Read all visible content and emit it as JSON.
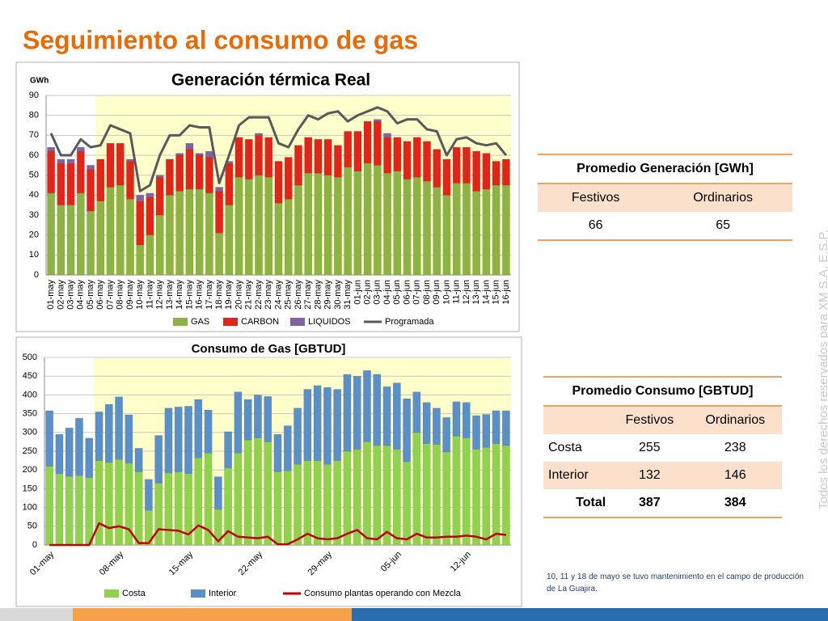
{
  "title": "Seguimiento al consumo de gas",
  "chart_data": [
    {
      "type": "bar",
      "stacked": true,
      "title": "Generación térmica Real",
      "ylabel": "GWh",
      "categories": [
        "01-may",
        "02-may",
        "03-may",
        "04-may",
        "05-may",
        "06-may",
        "07-may",
        "08-may",
        "09-may",
        "10-may",
        "11-may",
        "12-may",
        "13-may",
        "14-may",
        "15-may",
        "16-may",
        "17-may",
        "18-may",
        "19-may",
        "20-may",
        "21-may",
        "22-may",
        "23-may",
        "24-may",
        "25-may",
        "26-may",
        "27-may",
        "28-may",
        "29-may",
        "30-may",
        "31-may",
        "01-jun",
        "02-jun",
        "03-jun",
        "04-jun",
        "05-jun",
        "06-jun",
        "07-jun",
        "08-jun",
        "09-jun",
        "10-jun",
        "11-jun",
        "12-jun",
        "13-jun",
        "14-jun",
        "15-jun",
        "16-jun"
      ],
      "series": [
        {
          "name": "GAS",
          "color": "#8db346",
          "values": [
            41,
            35,
            35,
            41,
            32,
            37,
            44,
            45,
            38,
            15,
            20,
            30,
            40,
            42,
            43,
            43,
            41,
            21,
            35,
            49,
            48,
            50,
            49,
            36,
            38,
            45,
            51,
            51,
            50,
            49,
            54,
            52,
            56,
            55,
            51,
            52,
            48,
            49,
            47,
            44,
            40,
            46,
            46,
            42,
            43,
            45,
            45
          ]
        },
        {
          "name": "CARBON",
          "color": "#e0261b",
          "values": [
            21,
            21,
            21,
            21,
            21,
            21,
            22,
            21,
            19,
            22,
            19,
            19,
            18,
            18,
            20,
            17,
            18,
            21,
            21,
            20,
            20,
            20,
            20,
            21,
            21,
            20,
            18,
            17,
            18,
            16,
            18,
            20,
            21,
            22,
            18,
            17,
            19,
            20,
            20,
            19,
            18,
            18,
            18,
            20,
            18,
            12,
            13
          ]
        },
        {
          "name": "LIQUIDOS",
          "color": "#8064a2",
          "values": [
            2,
            2,
            2,
            2,
            2,
            0,
            0,
            0,
            1,
            3,
            2,
            1,
            0,
            1,
            3,
            1,
            3,
            2,
            1,
            0,
            0,
            1,
            0,
            0,
            0,
            0,
            0,
            0,
            0,
            0,
            0,
            0,
            0,
            1,
            2,
            0,
            0,
            0,
            0,
            0,
            0,
            0,
            0,
            0,
            0,
            0,
            0
          ]
        },
        {
          "name": "Programada",
          "type": "line",
          "color": "#595959",
          "values": [
            71,
            60,
            60,
            68,
            64,
            65,
            75,
            73,
            71,
            42,
            45,
            60,
            70,
            70,
            75,
            74,
            74,
            46,
            60,
            75,
            79,
            79,
            79,
            66,
            64,
            73,
            80,
            78,
            81,
            82,
            77,
            80,
            82,
            84,
            82,
            76,
            78,
            78,
            73,
            72,
            60,
            68,
            69,
            66,
            65,
            66,
            60
          ]
        }
      ],
      "ylim": [
        0,
        90
      ],
      "yticks": [
        0,
        10,
        20,
        30,
        40,
        50,
        60,
        70,
        80,
        90
      ],
      "grid": true,
      "shade_start_index": 5,
      "shade_color": "#ffffcc"
    },
    {
      "type": "bar",
      "stacked": true,
      "title": "Consumo de Gas [GBTUD]",
      "categories": [
        "01-may",
        null,
        null,
        null,
        null,
        null,
        null,
        "08-may",
        null,
        null,
        null,
        null,
        null,
        null,
        "15-may",
        null,
        null,
        null,
        null,
        null,
        null,
        "22-may",
        null,
        null,
        null,
        null,
        null,
        null,
        "29-may",
        null,
        null,
        null,
        null,
        null,
        null,
        "05-jun",
        null,
        null,
        null,
        null,
        null,
        null,
        "12-jun",
        null,
        null,
        null,
        null
      ],
      "series": [
        {
          "name": "Costa",
          "color": "#92d050",
          "values": [
            210,
            190,
            183,
            185,
            180,
            225,
            220,
            228,
            218,
            195,
            92,
            165,
            192,
            195,
            190,
            232,
            245,
            95,
            205,
            245,
            280,
            285,
            275,
            195,
            198,
            215,
            225,
            225,
            215,
            225,
            250,
            255,
            275,
            265,
            265,
            255,
            222,
            300,
            270,
            268,
            248,
            290,
            285,
            255,
            260,
            270,
            265
          ]
        },
        {
          "name": "Interior",
          "color": "#5b8fc7",
          "values": [
            148,
            105,
            129,
            153,
            105,
            130,
            155,
            167,
            129,
            63,
            83,
            127,
            173,
            173,
            180,
            156,
            115,
            87,
            97,
            163,
            108,
            115,
            121,
            100,
            120,
            150,
            190,
            200,
            205,
            190,
            205,
            195,
            190,
            190,
            157,
            177,
            168,
            108,
            110,
            97,
            92,
            92,
            95,
            90,
            88,
            88,
            93
          ]
        },
        {
          "name": "Consumo plantas operando con Mezcla",
          "type": "line",
          "color": "#c00000",
          "values": [
            0,
            0,
            0,
            0,
            0,
            58,
            45,
            50,
            42,
            5,
            5,
            42,
            40,
            38,
            28,
            52,
            40,
            10,
            37,
            22,
            20,
            18,
            22,
            2,
            2,
            15,
            30,
            18,
            15,
            18,
            30,
            40,
            18,
            15,
            35,
            18,
            15,
            30,
            20,
            20,
            22,
            22,
            25,
            22,
            15,
            30,
            27
          ]
        }
      ],
      "ylim": [
        0,
        500
      ],
      "yticks": [
        0,
        50,
        100,
        150,
        200,
        250,
        300,
        350,
        400,
        450,
        500
      ],
      "grid": true,
      "shade_start_index": 5,
      "shade_color": "#ffffcc"
    }
  ],
  "tables": [
    {
      "title": "Promedio Generación [GWh]",
      "columns": [
        "Festivos",
        "Ordinarios"
      ],
      "rows": [
        [
          66,
          65
        ]
      ]
    },
    {
      "title": "Promedio Consumo [GBTUD]",
      "columns": [
        "Festivos",
        "Ordinarios"
      ],
      "rows": [
        [
          "Costa",
          255,
          238
        ],
        [
          "Interior",
          132,
          146
        ],
        [
          "Total",
          387,
          384
        ]
      ]
    }
  ],
  "footnote": "10, 11 y 18 de mayo se tuvo mantenimiento en el campo de producción de La Guajira.",
  "watermark": "Todos los derechos reservados para XM S.A. E.S.P."
}
